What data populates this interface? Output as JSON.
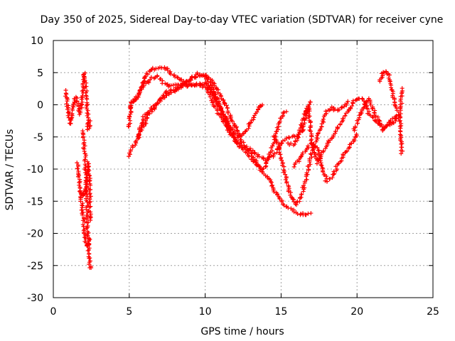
{
  "chart_data": {
    "type": "scatter",
    "title": "Day 350 of 2025, Sidereal Day-to-day VTEC variation (SDTVAR) for receiver cyne",
    "xlabel": "GPS time / hours",
    "ylabel": "SDTVAR / TECUs",
    "xlim": [
      0,
      25
    ],
    "ylim": [
      -30,
      10
    ],
    "x_ticks": [
      0,
      5,
      10,
      15,
      20,
      25
    ],
    "y_ticks": [
      10,
      5,
      0,
      -5,
      -10,
      -15,
      -20,
      -25,
      -30
    ],
    "grid": true,
    "marker": "+",
    "color": "#ff0000",
    "series": [
      {
        "name": "early-track-a",
        "points": [
          [
            0.8,
            2.2
          ],
          [
            0.9,
            0.5
          ],
          [
            1.0,
            -1.5
          ],
          [
            1.1,
            -3
          ],
          [
            1.2,
            -2
          ],
          [
            1.3,
            -0.5
          ],
          [
            1.4,
            0.8
          ],
          [
            1.5,
            1.2
          ],
          [
            1.6,
            0.5
          ],
          [
            1.7,
            -1
          ]
        ]
      },
      {
        "name": "early-track-b",
        "points": [
          [
            1.6,
            -9
          ],
          [
            1.7,
            -11
          ],
          [
            1.75,
            -13.5
          ],
          [
            1.8,
            -14
          ],
          [
            1.9,
            -16
          ],
          [
            2.0,
            -18
          ],
          [
            2.05,
            -20
          ],
          [
            2.1,
            -21
          ],
          [
            2.2,
            -22
          ],
          [
            2.3,
            -21.5
          ],
          [
            2.35,
            -21
          ]
        ]
      },
      {
        "name": "early-track-c",
        "points": [
          [
            1.8,
            -13.5
          ],
          [
            1.9,
            -13.8
          ],
          [
            2.0,
            -14
          ],
          [
            2.1,
            -13.5
          ],
          [
            2.2,
            -12
          ],
          [
            2.25,
            -10.5
          ],
          [
            2.3,
            -9
          ],
          [
            2.4,
            -12
          ],
          [
            2.4,
            -15
          ],
          [
            2.4,
            -18
          ]
        ]
      },
      {
        "name": "early-track-d",
        "points": [
          [
            1.7,
            -1.5
          ],
          [
            1.8,
            -0.5
          ],
          [
            1.9,
            1
          ],
          [
            2.0,
            3
          ],
          [
            2.05,
            5
          ],
          [
            2.1,
            3.5
          ],
          [
            2.2,
            1
          ],
          [
            2.25,
            -2
          ],
          [
            2.3,
            -4
          ],
          [
            2.35,
            -3.5
          ],
          [
            2.4,
            -2.5
          ]
        ]
      },
      {
        "name": "early-track-e",
        "points": [
          [
            1.9,
            -4
          ],
          [
            2.0,
            -6
          ],
          [
            2.1,
            -8
          ],
          [
            2.15,
            -11
          ],
          [
            2.2,
            -15
          ],
          [
            2.25,
            -19
          ],
          [
            2.3,
            -22
          ],
          [
            2.35,
            -24
          ],
          [
            2.45,
            -25.5
          ]
        ]
      },
      {
        "name": "track-1",
        "points": [
          [
            5.0,
            -8
          ],
          [
            5.2,
            -6.5
          ],
          [
            5.4,
            -6
          ],
          [
            5.6,
            -5
          ],
          [
            5.8,
            -3
          ],
          [
            6.0,
            -1.5
          ],
          [
            6.5,
            -0.5
          ],
          [
            7.0,
            0.5
          ],
          [
            7.5,
            1.5
          ],
          [
            8.0,
            2.2
          ],
          [
            8.5,
            2.8
          ],
          [
            9.0,
            3
          ],
          [
            9.5,
            3.2
          ],
          [
            10.0,
            3.3
          ],
          [
            10.3,
            2.8
          ],
          [
            10.6,
            1.5
          ],
          [
            11.0,
            -0.5
          ],
          [
            11.4,
            -2.5
          ],
          [
            11.8,
            -4.5
          ],
          [
            12.0,
            -6
          ]
        ]
      },
      {
        "name": "track-2",
        "points": [
          [
            5.0,
            -3.5
          ],
          [
            5.1,
            -1
          ],
          [
            5.2,
            0.5
          ],
          [
            5.4,
            1
          ],
          [
            5.6,
            1.5
          ],
          [
            5.8,
            3
          ],
          [
            6.0,
            4
          ],
          [
            6.2,
            5
          ],
          [
            6.5,
            5.5
          ],
          [
            7.0,
            5.8
          ],
          [
            7.3,
            5.8
          ],
          [
            7.5,
            5.5
          ],
          [
            7.8,
            4.8
          ],
          [
            8.2,
            4.2
          ],
          [
            8.6,
            3.5
          ],
          [
            9.0,
            3.2
          ],
          [
            9.5,
            3
          ],
          [
            10.0,
            2.8
          ],
          [
            10.3,
            2.5
          ],
          [
            10.7,
            1
          ],
          [
            11.1,
            -1.5
          ],
          [
            11.5,
            -3.5
          ],
          [
            12.0,
            -5.5
          ],
          [
            12.5,
            -6.5
          ],
          [
            13.0,
            -7
          ],
          [
            13.5,
            -8
          ],
          [
            14.0,
            -8.5
          ],
          [
            14.5,
            -8
          ],
          [
            15.0,
            -6
          ],
          [
            15.5,
            -5
          ],
          [
            16.0,
            -5
          ],
          [
            16.4,
            -4
          ],
          [
            16.7,
            -1
          ],
          [
            17.0,
            0.5
          ]
        ]
      },
      {
        "name": "track-3",
        "points": [
          [
            5.0,
            -0.5
          ],
          [
            5.3,
            0.5
          ],
          [
            5.6,
            1.5
          ],
          [
            6.0,
            3
          ],
          [
            6.4,
            4
          ],
          [
            6.8,
            4.5
          ],
          [
            7.2,
            3.5
          ],
          [
            7.6,
            3
          ],
          [
            8.0,
            3
          ],
          [
            8.5,
            3.2
          ],
          [
            9.0,
            3.8
          ],
          [
            9.5,
            4.5
          ],
          [
            10.0,
            4.5
          ],
          [
            10.5,
            3.5
          ],
          [
            11.0,
            1.5
          ],
          [
            11.3,
            0
          ],
          [
            11.7,
            -2
          ],
          [
            12.0,
            -3.5
          ],
          [
            12.3,
            -5
          ],
          [
            12.7,
            -4
          ],
          [
            13.1,
            -2.5
          ],
          [
            13.5,
            -0.5
          ],
          [
            13.8,
            0
          ]
        ]
      },
      {
        "name": "track-4",
        "points": [
          [
            5.5,
            -5
          ],
          [
            5.8,
            -4
          ],
          [
            6.0,
            -3
          ],
          [
            6.3,
            -1.5
          ],
          [
            6.7,
            -0.5
          ],
          [
            7.0,
            0.8
          ],
          [
            7.5,
            2
          ],
          [
            8.0,
            2.5
          ],
          [
            8.5,
            3
          ],
          [
            9.0,
            4
          ],
          [
            9.5,
            4.8
          ],
          [
            10.0,
            4.5
          ],
          [
            10.3,
            3.5
          ],
          [
            10.7,
            1.5
          ],
          [
            11.1,
            -0.8
          ],
          [
            11.5,
            -3
          ],
          [
            12.0,
            -4.5
          ],
          [
            12.5,
            -6
          ],
          [
            13.0,
            -7.5
          ],
          [
            13.5,
            -9.5
          ],
          [
            13.8,
            -10
          ],
          [
            14.0,
            -9.5
          ],
          [
            14.3,
            -7.5
          ],
          [
            14.7,
            -4
          ],
          [
            15.0,
            -2
          ],
          [
            15.3,
            -1
          ]
        ]
      },
      {
        "name": "track-5",
        "points": [
          [
            10.1,
            2.5
          ],
          [
            10.4,
            1
          ],
          [
            10.8,
            -1
          ],
          [
            11.3,
            -3
          ],
          [
            11.8,
            -5
          ],
          [
            12.3,
            -6.5
          ],
          [
            12.8,
            -7.5
          ],
          [
            13.3,
            -9
          ],
          [
            13.8,
            -10.5
          ],
          [
            14.2,
            -11.5
          ],
          [
            14.6,
            -13.5
          ],
          [
            15.0,
            -15
          ],
          [
            15.4,
            -16
          ],
          [
            15.8,
            -16.5
          ],
          [
            16.2,
            -17
          ],
          [
            16.6,
            -17
          ],
          [
            16.9,
            -17
          ]
        ]
      },
      {
        "name": "track-6",
        "points": [
          [
            14.5,
            -5
          ],
          [
            14.8,
            -6
          ],
          [
            15.2,
            -10
          ],
          [
            15.6,
            -14
          ],
          [
            16.0,
            -15.5
          ],
          [
            16.3,
            -14.5
          ],
          [
            16.7,
            -11
          ],
          [
            17.0,
            -7.5
          ],
          [
            17.3,
            -5.5
          ],
          [
            17.7,
            -3
          ],
          [
            18.0,
            -1
          ],
          [
            18.3,
            -0.5
          ],
          [
            18.7,
            -1
          ],
          [
            19.0,
            -0.5
          ],
          [
            19.4,
            0.5
          ]
        ]
      },
      {
        "name": "track-7",
        "points": [
          [
            15.5,
            -6
          ],
          [
            15.8,
            -6.2
          ],
          [
            16.0,
            -5.5
          ],
          [
            16.3,
            -3.5
          ],
          [
            16.6,
            -1
          ],
          [
            16.8,
            -0.5
          ],
          [
            17.0,
            -5.5
          ],
          [
            17.4,
            -9
          ],
          [
            17.8,
            -7
          ],
          [
            18.2,
            -5.5
          ],
          [
            18.6,
            -4
          ],
          [
            19.0,
            -2.5
          ],
          [
            19.4,
            -1
          ],
          [
            19.8,
            0.5
          ],
          [
            20.2,
            1
          ],
          [
            20.5,
            0.5
          ],
          [
            20.8,
            -1.5
          ],
          [
            21.2,
            -2.5
          ],
          [
            21.5,
            -3
          ],
          [
            21.8,
            -3.5
          ],
          [
            22.2,
            -3
          ],
          [
            22.5,
            -2.5
          ],
          [
            22.8,
            -1.5
          ],
          [
            23.0,
            2.5
          ]
        ]
      },
      {
        "name": "track-8",
        "points": [
          [
            15.8,
            -9.5
          ],
          [
            16.2,
            -8.5
          ],
          [
            16.6,
            -7
          ],
          [
            17.0,
            -6
          ],
          [
            17.4,
            -7
          ],
          [
            17.7,
            -9.5
          ],
          [
            18.0,
            -12
          ],
          [
            18.4,
            -11
          ],
          [
            18.8,
            -9
          ],
          [
            19.2,
            -7.5
          ],
          [
            19.5,
            -6.5
          ],
          [
            19.9,
            -5
          ],
          [
            20.0,
            -4.5
          ]
        ]
      },
      {
        "name": "track-9",
        "points": [
          [
            19.8,
            -4
          ],
          [
            20.1,
            -2
          ],
          [
            20.5,
            0
          ],
          [
            20.8,
            1
          ],
          [
            21.1,
            -1
          ],
          [
            21.4,
            -2.5
          ],
          [
            21.7,
            -4
          ],
          [
            21.9,
            -3.5
          ],
          [
            22.2,
            -2.5
          ],
          [
            22.5,
            -2
          ],
          [
            22.8,
            -1.5
          ],
          [
            22.9,
            -5
          ],
          [
            22.95,
            -7.5
          ]
        ]
      },
      {
        "name": "track-10",
        "points": [
          [
            21.5,
            3.5
          ],
          [
            21.7,
            5
          ],
          [
            21.9,
            5.2
          ],
          [
            22.1,
            4.5
          ],
          [
            22.3,
            2
          ],
          [
            22.5,
            0
          ],
          [
            22.7,
            -1
          ]
        ]
      }
    ]
  }
}
